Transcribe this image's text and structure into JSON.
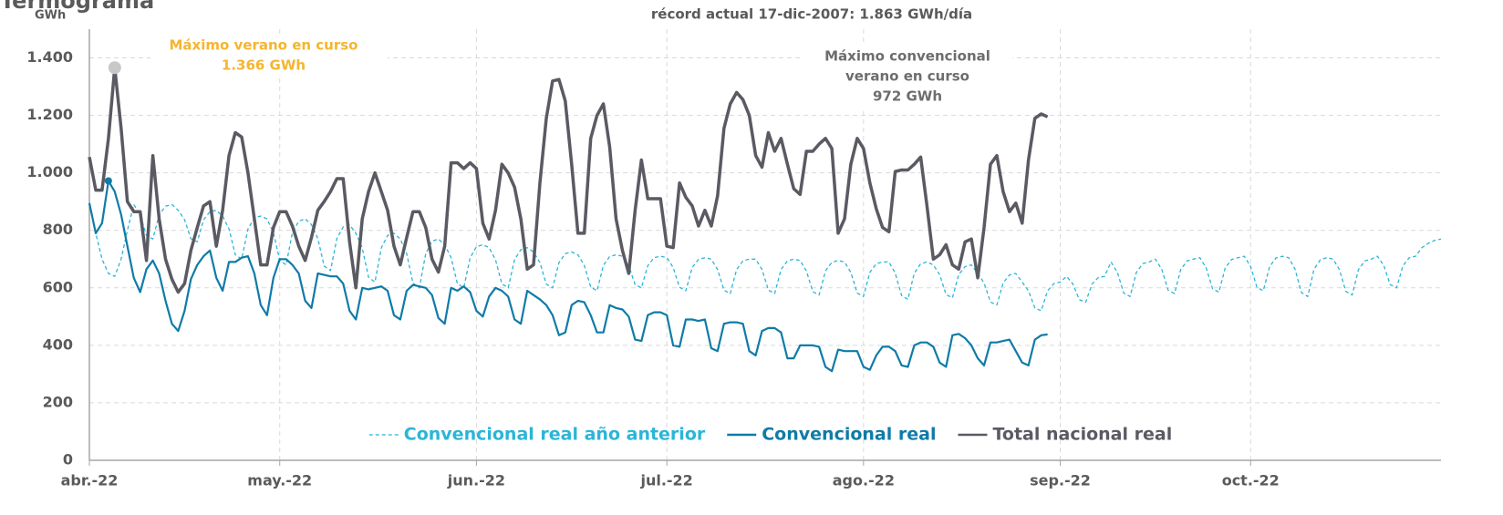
{
  "chart_data": {
    "type": "line",
    "title": "Termograma",
    "subtitle": "récord actual 17-dic-2007: 1.863 GWh/día",
    "y_label": "GWh",
    "xlim": [
      0,
      213
    ],
    "xticks": [
      {
        "value": 0,
        "label": "abr.-22"
      },
      {
        "value": 30,
        "label": "may.-22"
      },
      {
        "value": 61,
        "label": "jun.-22"
      },
      {
        "value": 91,
        "label": "jul.-22"
      },
      {
        "value": 122,
        "label": "ago.-22"
      },
      {
        "value": 153,
        "label": "sep.-22"
      },
      {
        "value": 183,
        "label": "oct.-22"
      }
    ],
    "ylim": [
      0,
      1500
    ],
    "yticks": [
      0,
      200,
      400,
      600,
      800,
      {
        "value": 1000,
        "label": "1.000"
      },
      {
        "value": 1200,
        "label": "1.200"
      },
      {
        "value": 1400,
        "label": "1.400"
      }
    ],
    "grid": true,
    "legend": "bottom",
    "annotations": [
      {
        "lines": [
          "Máximo verano en curso",
          "1.366 GWh"
        ],
        "color": "#f5b52e"
      },
      {
        "lines": [
          "Máximo convencional",
          "verano en curso",
          "972 GWh"
        ],
        "color": "#6d6d6d"
      }
    ],
    "series": [
      {
        "name": "Convencional real año anterior",
        "color": "#2bb5d8",
        "dashed": true,
        "values": [
          890,
          790,
          700,
          650,
          640,
          700,
          800,
          890,
          854,
          782,
          770,
          854,
          884,
          890,
          870,
          837,
          771,
          760,
          837,
          865,
          870,
          850,
          805,
          715,
          700,
          805,
          843,
          850,
          840,
          792,
          696,
          680,
          792,
          832,
          840,
          820,
          772,
          676,
          660,
          772,
          812,
          820,
          790,
          739,
          637,
          620,
          739,
          782,
          790,
          770,
          719,
          617,
          600,
          719,
          762,
          770,
          750,
          705,
          615,
          600,
          705,
          743,
          750,
          740,
          698,
          614,
          600,
          698,
          733,
          740,
          725,
          688,
          613,
          600,
          688,
          719,
          725,
          715,
          678,
          603,
          590,
          678,
          709,
          715,
          710,
          677,
          611,
          600,
          677,
          705,
          710,
          705,
          671,
          602,
          590,
          671,
          699,
          705,
          700,
          664,
          592,
          580,
          664,
          694,
          700,
          700,
          664,
          592,
          580,
          664,
          694,
          700,
          695,
          659,
          587,
          575,
          659,
          689,
          695,
          690,
          654,
          582,
          570,
          654,
          684,
          690,
          690,
          651,
          573,
          560,
          651,
          684,
          690,
          680,
          646,
          577,
          565,
          646,
          674,
          680,
          650,
          617,
          551,
          540,
          617,
          645,
          650,
          620,
          590,
          530,
          520,
          590,
          615,
          620,
          640,
          613,
          559,
          550,
          613,
          636,
          640,
          690,
          654,
          582,
          570,
          654,
          684,
          690,
          700,
          664,
          592,
          580,
          664,
          694,
          700,
          705,
          669,
          597,
          585,
          669,
          699,
          705,
          710,
          674,
          602,
          590,
          674,
          704,
          710,
          705,
          665,
          584,
          570,
          665,
          698,
          705,
          700,
          663,
          588,
          575,
          663,
          694,
          700,
          710,
          677,
          611,
          600,
          677,
          705,
          710,
          740,
          755,
          765,
          770
        ]
      },
      {
        "name": "Convencional real",
        "color": "#0f7ba8",
        "values": [
          895,
          790,
          825,
          972,
          935,
          855,
          745,
          635,
          585,
          665,
          695,
          650,
          555,
          475,
          450,
          520,
          630,
          680,
          710,
          730,
          635,
          590,
          690,
          690,
          705,
          710,
          650,
          540,
          505,
          635,
          700,
          700,
          680,
          650,
          555,
          530,
          650,
          645,
          640,
          640,
          615,
          520,
          490,
          600,
          595,
          600,
          605,
          590,
          505,
          490,
          590,
          610,
          605,
          600,
          575,
          495,
          475,
          600,
          590,
          605,
          585,
          520,
          500,
          570,
          600,
          590,
          570,
          490,
          475,
          590,
          575,
          560,
          540,
          505,
          435,
          445,
          540,
          555,
          550,
          505,
          445,
          445,
          540,
          530,
          525,
          500,
          420,
          415,
          505,
          515,
          515,
          505,
          400,
          395,
          490,
          490,
          485,
          490,
          390,
          380,
          475,
          480,
          480,
          475,
          380,
          365,
          450,
          460,
          460,
          445,
          355,
          355,
          400,
          400,
          400,
          395,
          325,
          310,
          385,
          380,
          380,
          380,
          325,
          315,
          365,
          395,
          395,
          380,
          330,
          325,
          400,
          410,
          410,
          395,
          340,
          325,
          435,
          440,
          425,
          400,
          355,
          330,
          410,
          410,
          415,
          420,
          380,
          340,
          330,
          420,
          435,
          438,
          null,
          null,
          null,
          null,
          null,
          null,
          null,
          null,
          null,
          null,
          null,
          null,
          null,
          null,
          null,
          null,
          null,
          null,
          null,
          null,
          null,
          null,
          null,
          null,
          null,
          null,
          null,
          null,
          null,
          null,
          null,
          null,
          null,
          null,
          null,
          null,
          null,
          null,
          null,
          null,
          null,
          null,
          null,
          null,
          null,
          null,
          null,
          null,
          null,
          null,
          null,
          null,
          null,
          null,
          null,
          null,
          null,
          null,
          null,
          null,
          null,
          null
        ]
      },
      {
        "name": "Total nacional real",
        "color": "#5a5a63",
        "values": [
          1055,
          940,
          940,
          1120,
          1366,
          1155,
          900,
          865,
          865,
          695,
          1060,
          840,
          700,
          630,
          585,
          615,
          730,
          810,
          885,
          900,
          745,
          870,
          1060,
          1140,
          1125,
          1000,
          840,
          680,
          680,
          810,
          865,
          865,
          815,
          745,
          695,
          775,
          870,
          900,
          935,
          980,
          980,
          760,
          600,
          840,
          935,
          1000,
          935,
          870,
          745,
          680,
          775,
          865,
          865,
          810,
          700,
          655,
          745,
          1035,
          1035,
          1015,
          1035,
          1015,
          825,
          770,
          870,
          1030,
          1000,
          950,
          840,
          665,
          680,
          965,
          1190,
          1320,
          1325,
          1250,
          1030,
          790,
          790,
          1120,
          1200,
          1240,
          1090,
          840,
          730,
          650,
          870,
          1045,
          910,
          910,
          910,
          745,
          740,
          965,
          915,
          885,
          815,
          870,
          815,
          920,
          1155,
          1240,
          1280,
          1255,
          1200,
          1060,
          1020,
          1140,
          1075,
          1120,
          1030,
          945,
          925,
          1075,
          1075,
          1100,
          1120,
          1085,
          790,
          840,
          1030,
          1120,
          1085,
          965,
          875,
          810,
          795,
          1005,
          1010,
          1010,
          1030,
          1055,
          885,
          700,
          715,
          750,
          680,
          665,
          760,
          770,
          635,
          810,
          1030,
          1060,
          935,
          865,
          895,
          825,
          1045,
          1190,
          1205,
          1195,
          null,
          null,
          null,
          null,
          null,
          null,
          null,
          null,
          null,
          null,
          null,
          null,
          null,
          null,
          null,
          null,
          null,
          null,
          null,
          null,
          null,
          null,
          null,
          null,
          null,
          null,
          null,
          null,
          null,
          null,
          null,
          null,
          null,
          null,
          null,
          null,
          null,
          null,
          null,
          null,
          null,
          null,
          null,
          null,
          null,
          null,
          null,
          null,
          null,
          null,
          null,
          null,
          null,
          null,
          null,
          null,
          null,
          null,
          null,
          null,
          null,
          null
        ]
      }
    ]
  }
}
